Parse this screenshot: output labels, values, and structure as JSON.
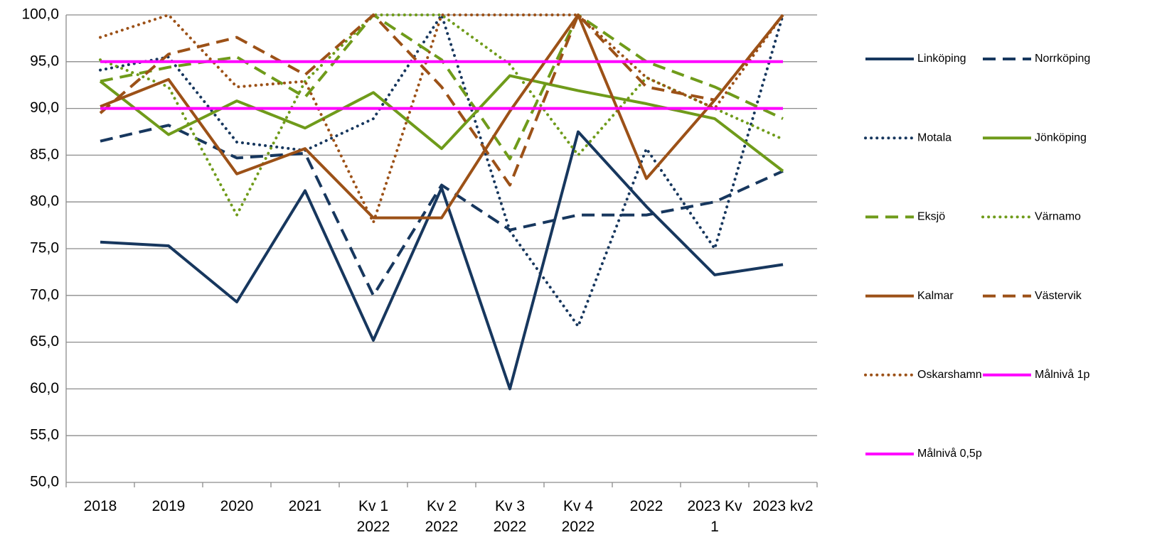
{
  "chart_data": {
    "type": "line",
    "categories": [
      "2018",
      "2019",
      "2020",
      "2021",
      "Kv 1 2022",
      "Kv 2 2022",
      "Kv 3 2022",
      "Kv 4 2022",
      "2022",
      "2023 Kv 1",
      "2023 kv2"
    ],
    "ylim": [
      50,
      100
    ],
    "yticks": [
      {
        "value": 50,
        "label": "50,0"
      },
      {
        "value": 55,
        "label": "55,0"
      },
      {
        "value": 60,
        "label": "60,0"
      },
      {
        "value": 65,
        "label": "65,0"
      },
      {
        "value": 70,
        "label": "70,0"
      },
      {
        "value": 75,
        "label": "75,0"
      },
      {
        "value": 80,
        "label": "80,0"
      },
      {
        "value": 85,
        "label": "85,0"
      },
      {
        "value": 90,
        "label": "90,0"
      },
      {
        "value": 95,
        "label": "95,0"
      },
      {
        "value": 100,
        "label": "100,0"
      }
    ],
    "grid": true,
    "legend": "right",
    "series": [
      {
        "name": "Linköping",
        "color": "#17375e",
        "dash": "solid",
        "values": [
          75.7,
          75.3,
          69.3,
          81.2,
          65.2,
          81.5,
          60.0,
          87.5,
          79.5,
          72.2,
          73.3
        ]
      },
      {
        "name": "Norrköping",
        "color": "#17375e",
        "dash": "dashed",
        "values": [
          86.5,
          88.2,
          84.7,
          85.2,
          70.0,
          81.8,
          77.0,
          78.6,
          78.6,
          80.0,
          83.3
        ]
      },
      {
        "name": "Motala",
        "color": "#17375e",
        "dash": "dotted",
        "values": [
          94.1,
          95.5,
          86.4,
          85.5,
          88.9,
          100.0,
          76.9,
          66.7,
          85.7,
          75.0,
          100.0
        ]
      },
      {
        "name": "Jönköping",
        "color": "#6f9b1a",
        "dash": "solid",
        "values": [
          92.9,
          87.2,
          90.8,
          87.9,
          91.7,
          85.7,
          93.5,
          91.9,
          90.5,
          88.9,
          83.3
        ]
      },
      {
        "name": "Eksjö",
        "color": "#6f9b1a",
        "dash": "dashed",
        "values": [
          92.9,
          94.4,
          95.5,
          91.2,
          100.0,
          95.2,
          84.6,
          100.0,
          95.0,
          92.3,
          88.9
        ]
      },
      {
        "name": "Värnamo",
        "color": "#6f9b1a",
        "dash": "dotted",
        "values": [
          95.2,
          92.3,
          78.6,
          92.9,
          100.0,
          100.0,
          94.7,
          85.0,
          93.3,
          90.0,
          86.7
        ]
      },
      {
        "name": "Kalmar",
        "color": "#9c5117",
        "dash": "solid",
        "values": [
          90.2,
          93.1,
          83.0,
          85.7,
          78.3,
          78.3,
          89.7,
          100.0,
          82.5,
          90.9,
          100.0
        ]
      },
      {
        "name": "Västervik",
        "color": "#9c5117",
        "dash": "dashed",
        "values": [
          89.5,
          95.8,
          97.6,
          93.6,
          100.0,
          92.3,
          81.8,
          100.0,
          92.3,
          90.9,
          100.0
        ]
      },
      {
        "name": "Oskarshamn",
        "color": "#9c5117",
        "dash": "dotted",
        "values": [
          97.6,
          100.0,
          92.3,
          92.9,
          77.8,
          100.0,
          100.0,
          100.0,
          93.3,
          90.0,
          100.0
        ]
      },
      {
        "name": "Målnivå 1p",
        "color": "#ff00ff",
        "dash": "solid",
        "values": [
          95,
          95,
          95,
          95,
          95,
          95,
          95,
          95,
          95,
          95,
          95
        ]
      },
      {
        "name": "Målnivå 0,5p",
        "color": "#ff00ff",
        "dash": "solid",
        "values": [
          90,
          90,
          90,
          90,
          90,
          90,
          90,
          90,
          90,
          90,
          90
        ]
      }
    ]
  }
}
